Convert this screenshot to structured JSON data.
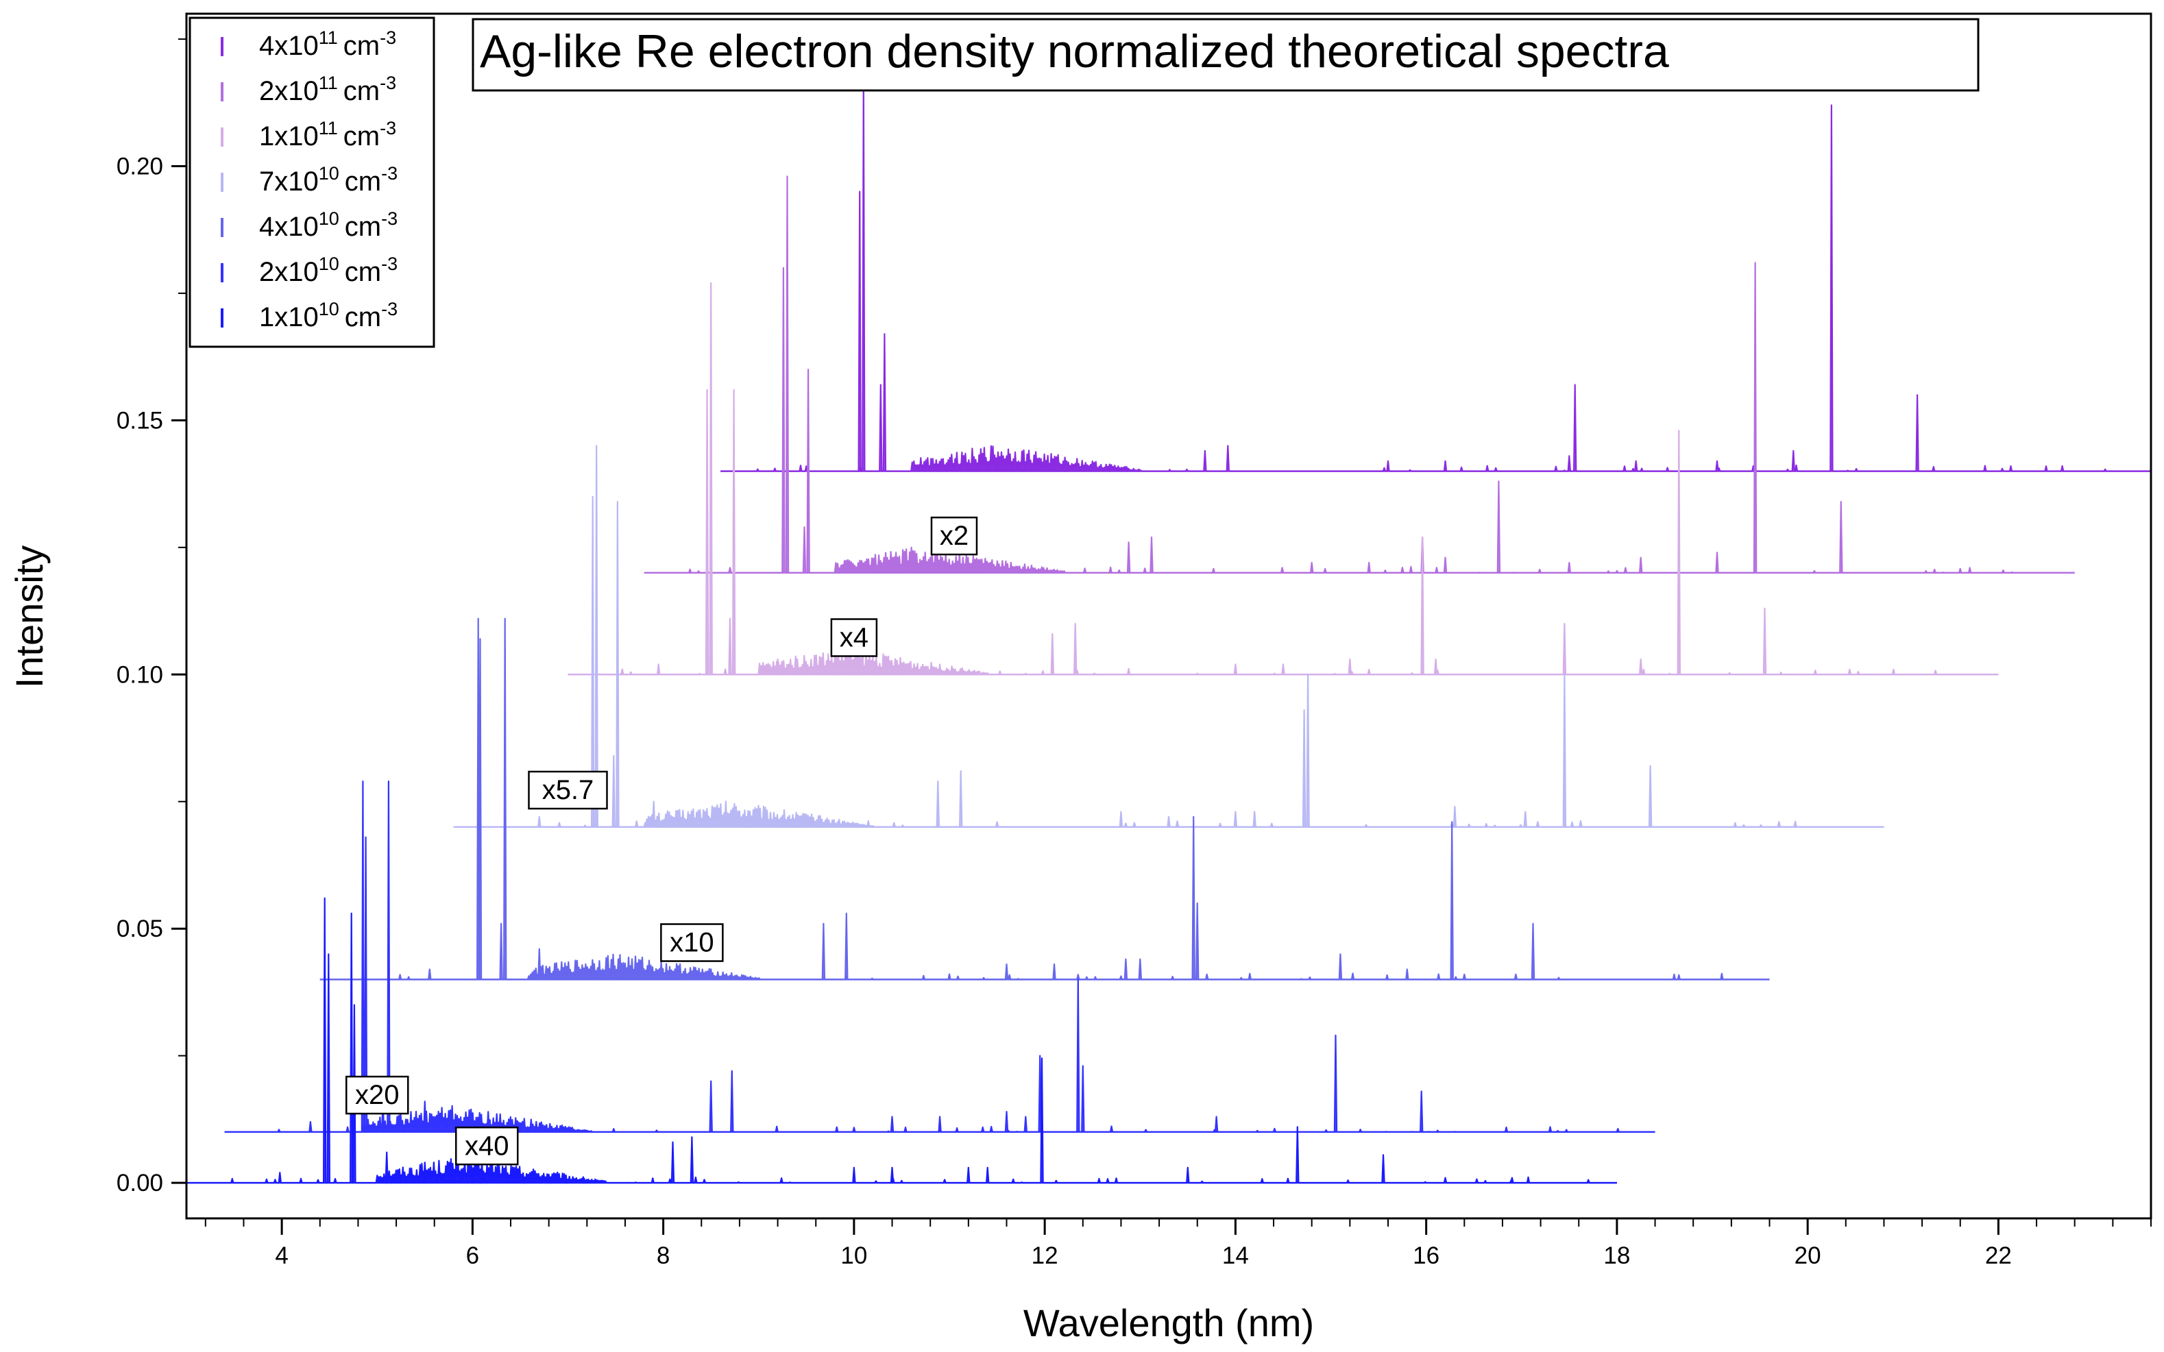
{
  "chart_data": {
    "type": "line",
    "title": "Ag-like Re electron density normalized theoretical spectra",
    "xlabel": "Wavelength (nm)",
    "ylabel": "Intensity",
    "xlim": [
      3.0,
      23.6
    ],
    "ylim": [
      -0.007,
      0.23
    ],
    "x_ticks": [
      4,
      6,
      8,
      10,
      12,
      14,
      16,
      18,
      20,
      22
    ],
    "y_ticks": [
      0.0,
      0.05,
      0.1,
      0.15,
      0.2
    ],
    "x_tick_labels": [
      "4",
      "6",
      "8",
      "10",
      "12",
      "14",
      "16",
      "18",
      "20",
      "22"
    ],
    "y_tick_labels": [
      "0.00",
      "0.05",
      "0.10",
      "0.15",
      "0.20"
    ],
    "series": [
      {
        "name": "1x10^10 cm^-3",
        "legend_base": "1x10",
        "legend_exp": "10",
        "legend_unit": "cm",
        "legend_unit_exp": "-3",
        "color": "#1a1aff",
        "scale_label": "x40",
        "offset": 0.0,
        "x_range": [
          3.0,
          18.0
        ],
        "peaks": [
          [
            4.45,
            0.056
          ],
          [
            4.49,
            0.045
          ],
          [
            4.73,
            0.053
          ],
          [
            4.76,
            0.035
          ],
          [
            5.1,
            0.006
          ],
          [
            5.5,
            0.004
          ],
          [
            3.98,
            0.002
          ],
          [
            8.1,
            0.008
          ],
          [
            8.3,
            0.009
          ],
          [
            10.0,
            0.003
          ],
          [
            10.4,
            0.003
          ],
          [
            11.2,
            0.003
          ],
          [
            11.4,
            0.003
          ],
          [
            11.97,
            0.0245
          ],
          [
            13.5,
            0.003
          ],
          [
            14.65,
            0.011
          ],
          [
            15.55,
            0.0055
          ],
          [
            16.2,
            0.001
          ],
          [
            16.9,
            0.001
          ]
        ]
      },
      {
        "name": "2x10^10 cm^-3",
        "legend_base": "2x10",
        "legend_exp": "10",
        "legend_unit": "cm",
        "legend_unit_exp": "-3",
        "color": "#3333ff",
        "scale_label": "x20",
        "offset": 0.01,
        "x_range": [
          3.4,
          18.4
        ],
        "peaks": [
          [
            4.3,
            0.002
          ],
          [
            4.85,
            0.069
          ],
          [
            4.88,
            0.058
          ],
          [
            5.12,
            0.069
          ],
          [
            5.06,
            0.006
          ],
          [
            5.5,
            0.006
          ],
          [
            8.5,
            0.01
          ],
          [
            8.72,
            0.012
          ],
          [
            10.4,
            0.003
          ],
          [
            10.9,
            0.003
          ],
          [
            11.6,
            0.004
          ],
          [
            11.8,
            0.003
          ],
          [
            11.95,
            0.015
          ],
          [
            12.35,
            0.03
          ],
          [
            12.4,
            0.013
          ],
          [
            13.8,
            0.003
          ],
          [
            15.05,
            0.019
          ],
          [
            15.95,
            0.008
          ],
          [
            17.3,
            0.001
          ]
        ]
      },
      {
        "name": "4x10^10 cm^-3",
        "legend_base": "4x10",
        "legend_exp": "10",
        "legend_unit": "cm",
        "legend_unit_exp": "-3",
        "color": "#6666ee",
        "scale_label": "x10",
        "offset": 0.04,
        "x_range": [
          4.4,
          19.6
        ],
        "peaks": [
          [
            6.06,
            0.071
          ],
          [
            6.08,
            0.067
          ],
          [
            6.3,
            0.011
          ],
          [
            6.34,
            0.071
          ],
          [
            6.7,
            0.006
          ],
          [
            5.55,
            0.002
          ],
          [
            9.68,
            0.011
          ],
          [
            9.92,
            0.013
          ],
          [
            11.6,
            0.003
          ],
          [
            12.1,
            0.003
          ],
          [
            12.85,
            0.004
          ],
          [
            13.0,
            0.004
          ],
          [
            13.56,
            0.032
          ],
          [
            13.6,
            0.015
          ],
          [
            15.1,
            0.005
          ],
          [
            15.8,
            0.002
          ],
          [
            16.27,
            0.031
          ],
          [
            17.12,
            0.011
          ],
          [
            18.6,
            0.001
          ]
        ]
      },
      {
        "name": "7x10^10 cm^-3",
        "legend_base": "7x10",
        "legend_exp": "10",
        "legend_unit": "cm",
        "legend_unit_exp": "-3",
        "color": "#b8b8f5",
        "scale_label": "x5.7",
        "offset": 0.07,
        "x_range": [
          5.8,
          20.8
        ],
        "peaks": [
          [
            7.26,
            0.065
          ],
          [
            7.3,
            0.075
          ],
          [
            7.48,
            0.014
          ],
          [
            7.52,
            0.064
          ],
          [
            7.9,
            0.005
          ],
          [
            6.7,
            0.002
          ],
          [
            10.88,
            0.009
          ],
          [
            11.12,
            0.011
          ],
          [
            12.8,
            0.003
          ],
          [
            13.3,
            0.002
          ],
          [
            14.0,
            0.003
          ],
          [
            14.2,
            0.003
          ],
          [
            14.72,
            0.023
          ],
          [
            14.76,
            0.03
          ],
          [
            16.3,
            0.004
          ],
          [
            17.04,
            0.003
          ],
          [
            17.45,
            0.03
          ],
          [
            18.35,
            0.012
          ],
          [
            19.7,
            0.001
          ]
        ]
      },
      {
        "name": "1x10^11 cm^-3",
        "legend_base": "1x10",
        "legend_exp": "11",
        "legend_unit": "cm",
        "legend_unit_exp": "-3",
        "color": "#d5aee8",
        "scale_label": "x4",
        "offset": 0.1,
        "x_range": [
          7.0,
          22.0
        ],
        "peaks": [
          [
            8.46,
            0.056
          ],
          [
            8.5,
            0.077
          ],
          [
            8.7,
            0.011
          ],
          [
            8.74,
            0.056
          ],
          [
            7.95,
            0.002
          ],
          [
            9.2,
            0.003
          ],
          [
            12.08,
            0.008
          ],
          [
            12.32,
            0.01
          ],
          [
            14.0,
            0.002
          ],
          [
            14.5,
            0.002
          ],
          [
            15.2,
            0.003
          ],
          [
            15.96,
            0.027
          ],
          [
            16.1,
            0.003
          ],
          [
            17.45,
            0.01
          ],
          [
            18.25,
            0.003
          ],
          [
            18.65,
            0.048
          ],
          [
            19.55,
            0.013
          ],
          [
            20.9,
            0.001
          ]
        ]
      },
      {
        "name": "2x10^11 cm^-3",
        "legend_base": "2x10",
        "legend_exp": "11",
        "legend_unit": "cm",
        "legend_unit_exp": "-3",
        "color": "#b36ee0",
        "scale_label": "x2",
        "offset": 0.12,
        "x_range": [
          7.8,
          22.8
        ],
        "peaks": [
          [
            9.26,
            0.06
          ],
          [
            9.3,
            0.078
          ],
          [
            9.48,
            0.009
          ],
          [
            9.52,
            0.04
          ],
          [
            8.7,
            0.001
          ],
          [
            12.88,
            0.006
          ],
          [
            13.12,
            0.007
          ],
          [
            14.8,
            0.002
          ],
          [
            15.4,
            0.002
          ],
          [
            15.96,
            0.007
          ],
          [
            16.2,
            0.003
          ],
          [
            16.76,
            0.018
          ],
          [
            17.5,
            0.002
          ],
          [
            18.25,
            0.003
          ],
          [
            19.05,
            0.004
          ],
          [
            19.45,
            0.061
          ],
          [
            20.35,
            0.014
          ],
          [
            21.7,
            0.001
          ]
        ]
      },
      {
        "name": "4x10^11 cm^-3",
        "legend_base": "4x10",
        "legend_exp": "11",
        "legend_unit": "cm",
        "legend_unit_exp": "-3",
        "color": "#8a2be2",
        "scale_label": "",
        "offset": 0.14,
        "x_range": [
          8.6,
          23.6
        ],
        "peaks": [
          [
            10.06,
            0.055
          ],
          [
            10.1,
            0.077
          ],
          [
            10.28,
            0.017
          ],
          [
            10.32,
            0.027
          ],
          [
            9.5,
            0.001
          ],
          [
            13.68,
            0.004
          ],
          [
            13.92,
            0.005
          ],
          [
            15.6,
            0.002
          ],
          [
            16.2,
            0.002
          ],
          [
            17.5,
            0.003
          ],
          [
            17.56,
            0.017
          ],
          [
            18.2,
            0.002
          ],
          [
            19.05,
            0.002
          ],
          [
            19.85,
            0.004
          ],
          [
            20.25,
            0.072
          ],
          [
            21.15,
            0.015
          ],
          [
            22.5,
            0.001
          ]
        ]
      }
    ]
  }
}
